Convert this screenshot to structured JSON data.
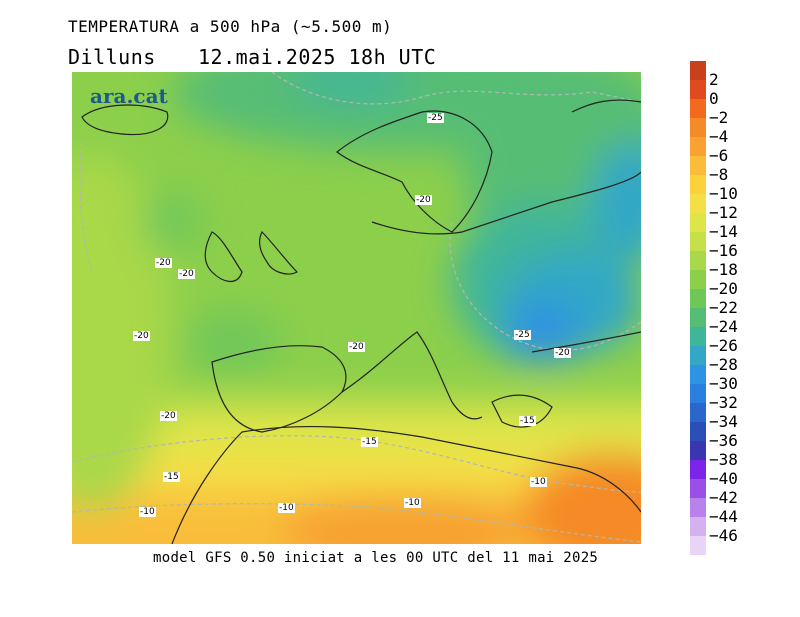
{
  "header": {
    "title": "TEMPERATURA a 500 hPa (~5.500 m)",
    "day": "Dilluns",
    "datetime": "12.mai.2025 18h UTC"
  },
  "brand": "ara.cat",
  "footer": "model GFS 0.50 iniciat a les 00 UTC del 11 mai 2025",
  "legend": {
    "levels": [
      "2",
      "0",
      "−2",
      "−4",
      "−6",
      "−8",
      "−10",
      "−12",
      "−14",
      "−16",
      "−18",
      "−20",
      "−22",
      "−24",
      "−26",
      "−28",
      "−30",
      "−32",
      "−34",
      "−36",
      "−38",
      "−40",
      "−42",
      "−44",
      "−46"
    ],
    "colors": [
      "#c8401c",
      "#e04a1f",
      "#f26a1e",
      "#f58a28",
      "#f7a233",
      "#f9bd3a",
      "#fbd13c",
      "#f4df46",
      "#dde549",
      "#c6e04a",
      "#a9d84a",
      "#8ccf4b",
      "#6fc75a",
      "#56bd74",
      "#3fb59a",
      "#33a7c6",
      "#2e93e2",
      "#2b7fe0",
      "#2b66cc",
      "#2a4fb7",
      "#3b35b1",
      "#7a25e8",
      "#9a4fe8",
      "#b982ea",
      "#d4b1ef",
      "#e7d4f6"
    ]
  },
  "contour_labels": [
    "-25",
    "-20",
    "-20",
    "-20",
    "-20",
    "-20",
    "-20",
    "-25",
    "-20",
    "-15",
    "-15",
    "-15",
    "-10",
    "-10",
    "-10",
    "-10"
  ]
}
